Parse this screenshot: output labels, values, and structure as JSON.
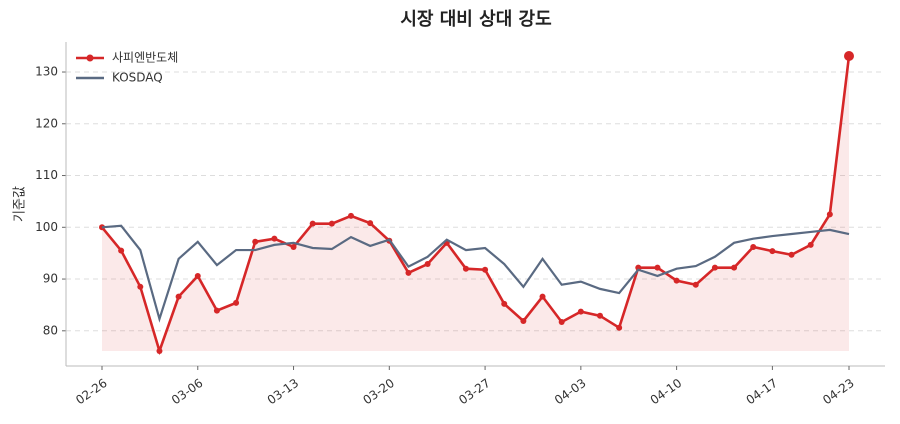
{
  "chart_data": {
    "type": "line",
    "title": "시장 대비 상대 강도",
    "y_label": "기준값",
    "categories": [
      "02-26",
      null,
      null,
      null,
      null,
      "03-06",
      null,
      null,
      null,
      null,
      "03-13",
      null,
      null,
      null,
      null,
      "03-20",
      null,
      null,
      null,
      null,
      "03-27",
      null,
      null,
      null,
      null,
      "04-03",
      null,
      null,
      null,
      null,
      "04-10",
      null,
      null,
      null,
      null,
      "04-17",
      null,
      null,
      null,
      "04-23"
    ],
    "series": [
      {
        "name": "사피엔반도체",
        "color": "#d62728",
        "marker": true,
        "fill": true,
        "values": [
          100,
          95.5,
          88.5,
          76.1,
          86.6,
          90.6,
          83.9,
          85.4,
          97.2,
          97.8,
          96.2,
          100.7,
          100.7,
          102.2,
          100.8,
          97.4,
          91.2,
          92.9,
          97.0,
          92.0,
          91.8,
          85.2,
          81.9,
          86.6,
          81.7,
          83.7,
          82.9,
          80.6,
          92.2,
          92.2,
          89.7,
          88.9,
          92.2,
          92.2,
          96.2,
          95.4,
          94.7,
          96.6,
          102.5,
          133.1
        ]
      },
      {
        "name": "KOSDAQ",
        "color": "#5a6a82",
        "marker": false,
        "fill": false,
        "values": [
          100,
          100.3,
          95.6,
          82.3,
          93.9,
          97.2,
          92.7,
          95.6,
          95.6,
          96.6,
          97.0,
          96.0,
          95.8,
          98.1,
          96.4,
          97.6,
          92.4,
          94.3,
          97.6,
          95.6,
          96.0,
          92.9,
          88.5,
          93.9,
          88.9,
          89.5,
          88.1,
          87.3,
          91.8,
          90.6,
          92.0,
          92.5,
          94.3,
          97.0,
          97.8,
          98.3,
          98.7,
          99.1,
          99.5,
          98.7
        ]
      }
    ],
    "ylim": [
      73.2,
      135.8
    ],
    "yticks": [
      80,
      90,
      100,
      110,
      120,
      130
    ],
    "grid": true,
    "legend": "upper-left"
  }
}
